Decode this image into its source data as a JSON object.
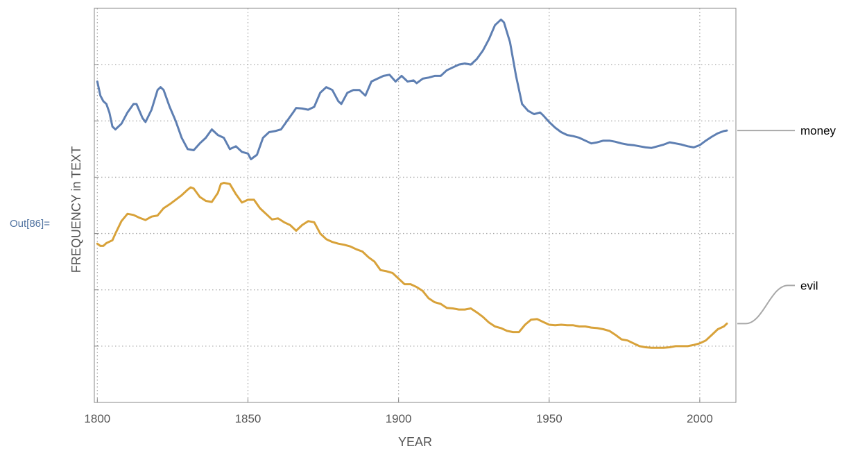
{
  "cell": {
    "out_label": "Out[86]="
  },
  "chart_data": {
    "type": "line",
    "title": "",
    "xlabel": "YEAR",
    "ylabel": "FREQUENCY in TEXT",
    "xlim": [
      1799,
      2012
    ],
    "ylim": [
      0,
      7
    ],
    "x_ticks": [
      1800,
      1850,
      1900,
      1950,
      2000
    ],
    "y_gridlines": [
      1,
      2,
      3,
      4,
      5,
      6
    ],
    "grid": true,
    "legend": "callout labels at right edge",
    "series": [
      {
        "name": "money",
        "color": "#5e7fb2",
        "points": [
          [
            1800,
            5.7
          ],
          [
            1801,
            5.45
          ],
          [
            1802,
            5.35
          ],
          [
            1803,
            5.3
          ],
          [
            1804,
            5.15
          ],
          [
            1805,
            4.9
          ],
          [
            1806,
            4.85
          ],
          [
            1808,
            4.95
          ],
          [
            1810,
            5.15
          ],
          [
            1812,
            5.3
          ],
          [
            1813,
            5.3
          ],
          [
            1815,
            5.05
          ],
          [
            1816,
            4.98
          ],
          [
            1818,
            5.2
          ],
          [
            1820,
            5.55
          ],
          [
            1821,
            5.6
          ],
          [
            1822,
            5.55
          ],
          [
            1824,
            5.25
          ],
          [
            1826,
            5.0
          ],
          [
            1828,
            4.7
          ],
          [
            1830,
            4.5
          ],
          [
            1832,
            4.48
          ],
          [
            1834,
            4.6
          ],
          [
            1836,
            4.7
          ],
          [
            1838,
            4.85
          ],
          [
            1840,
            4.75
          ],
          [
            1842,
            4.7
          ],
          [
            1844,
            4.5
          ],
          [
            1846,
            4.55
          ],
          [
            1848,
            4.45
          ],
          [
            1850,
            4.42
          ],
          [
            1851,
            4.32
          ],
          [
            1853,
            4.4
          ],
          [
            1855,
            4.7
          ],
          [
            1857,
            4.8
          ],
          [
            1859,
            4.82
          ],
          [
            1861,
            4.85
          ],
          [
            1863,
            5.0
          ],
          [
            1865,
            5.15
          ],
          [
            1866,
            5.23
          ],
          [
            1868,
            5.22
          ],
          [
            1870,
            5.2
          ],
          [
            1872,
            5.25
          ],
          [
            1874,
            5.5
          ],
          [
            1876,
            5.6
          ],
          [
            1878,
            5.55
          ],
          [
            1880,
            5.35
          ],
          [
            1881,
            5.3
          ],
          [
            1883,
            5.5
          ],
          [
            1885,
            5.55
          ],
          [
            1887,
            5.55
          ],
          [
            1889,
            5.45
          ],
          [
            1891,
            5.7
          ],
          [
            1893,
            5.75
          ],
          [
            1895,
            5.8
          ],
          [
            1897,
            5.82
          ],
          [
            1899,
            5.7
          ],
          [
            1901,
            5.8
          ],
          [
            1903,
            5.7
          ],
          [
            1905,
            5.72
          ],
          [
            1906,
            5.67
          ],
          [
            1908,
            5.75
          ],
          [
            1910,
            5.77
          ],
          [
            1912,
            5.8
          ],
          [
            1914,
            5.8
          ],
          [
            1916,
            5.9
          ],
          [
            1918,
            5.95
          ],
          [
            1920,
            6.0
          ],
          [
            1922,
            6.02
          ],
          [
            1924,
            6.0
          ],
          [
            1926,
            6.1
          ],
          [
            1928,
            6.25
          ],
          [
            1930,
            6.45
          ],
          [
            1932,
            6.7
          ],
          [
            1934,
            6.8
          ],
          [
            1935,
            6.75
          ],
          [
            1937,
            6.4
          ],
          [
            1939,
            5.8
          ],
          [
            1941,
            5.3
          ],
          [
            1943,
            5.18
          ],
          [
            1945,
            5.12
          ],
          [
            1947,
            5.15
          ],
          [
            1948,
            5.1
          ],
          [
            1950,
            4.98
          ],
          [
            1952,
            4.88
          ],
          [
            1954,
            4.8
          ],
          [
            1956,
            4.75
          ],
          [
            1958,
            4.73
          ],
          [
            1960,
            4.7
          ],
          [
            1962,
            4.65
          ],
          [
            1964,
            4.6
          ],
          [
            1966,
            4.62
          ],
          [
            1968,
            4.65
          ],
          [
            1970,
            4.65
          ],
          [
            1972,
            4.63
          ],
          [
            1974,
            4.6
          ],
          [
            1976,
            4.58
          ],
          [
            1978,
            4.57
          ],
          [
            1980,
            4.55
          ],
          [
            1982,
            4.53
          ],
          [
            1984,
            4.52
          ],
          [
            1986,
            4.55
          ],
          [
            1988,
            4.58
          ],
          [
            1990,
            4.62
          ],
          [
            1992,
            4.6
          ],
          [
            1994,
            4.58
          ],
          [
            1996,
            4.55
          ],
          [
            1998,
            4.53
          ],
          [
            2000,
            4.57
          ],
          [
            2002,
            4.65
          ],
          [
            2004,
            4.72
          ],
          [
            2006,
            4.78
          ],
          [
            2008,
            4.82
          ],
          [
            2009,
            4.83
          ]
        ]
      },
      {
        "name": "evil",
        "color": "#d8a23a",
        "points": [
          [
            1800,
            2.82
          ],
          [
            1801,
            2.78
          ],
          [
            1802,
            2.78
          ],
          [
            1803,
            2.83
          ],
          [
            1805,
            2.88
          ],
          [
            1806,
            3.0
          ],
          [
            1808,
            3.22
          ],
          [
            1810,
            3.35
          ],
          [
            1812,
            3.33
          ],
          [
            1814,
            3.28
          ],
          [
            1816,
            3.24
          ],
          [
            1818,
            3.3
          ],
          [
            1820,
            3.32
          ],
          [
            1822,
            3.45
          ],
          [
            1824,
            3.52
          ],
          [
            1826,
            3.6
          ],
          [
            1828,
            3.68
          ],
          [
            1830,
            3.78
          ],
          [
            1831,
            3.82
          ],
          [
            1832,
            3.8
          ],
          [
            1834,
            3.65
          ],
          [
            1836,
            3.58
          ],
          [
            1838,
            3.56
          ],
          [
            1840,
            3.72
          ],
          [
            1841,
            3.88
          ],
          [
            1842,
            3.9
          ],
          [
            1844,
            3.88
          ],
          [
            1846,
            3.7
          ],
          [
            1848,
            3.55
          ],
          [
            1850,
            3.6
          ],
          [
            1852,
            3.6
          ],
          [
            1854,
            3.45
          ],
          [
            1856,
            3.35
          ],
          [
            1858,
            3.25
          ],
          [
            1860,
            3.27
          ],
          [
            1862,
            3.2
          ],
          [
            1864,
            3.15
          ],
          [
            1866,
            3.05
          ],
          [
            1868,
            3.15
          ],
          [
            1870,
            3.22
          ],
          [
            1872,
            3.2
          ],
          [
            1874,
            3.0
          ],
          [
            1876,
            2.9
          ],
          [
            1878,
            2.85
          ],
          [
            1880,
            2.82
          ],
          [
            1882,
            2.8
          ],
          [
            1884,
            2.77
          ],
          [
            1886,
            2.72
          ],
          [
            1888,
            2.68
          ],
          [
            1890,
            2.58
          ],
          [
            1892,
            2.5
          ],
          [
            1894,
            2.35
          ],
          [
            1896,
            2.33
          ],
          [
            1898,
            2.3
          ],
          [
            1900,
            2.2
          ],
          [
            1902,
            2.1
          ],
          [
            1904,
            2.1
          ],
          [
            1906,
            2.05
          ],
          [
            1908,
            1.98
          ],
          [
            1910,
            1.85
          ],
          [
            1912,
            1.78
          ],
          [
            1914,
            1.75
          ],
          [
            1916,
            1.68
          ],
          [
            1918,
            1.67
          ],
          [
            1920,
            1.65
          ],
          [
            1922,
            1.65
          ],
          [
            1924,
            1.67
          ],
          [
            1926,
            1.6
          ],
          [
            1928,
            1.52
          ],
          [
            1930,
            1.42
          ],
          [
            1932,
            1.35
          ],
          [
            1934,
            1.32
          ],
          [
            1936,
            1.27
          ],
          [
            1938,
            1.25
          ],
          [
            1940,
            1.25
          ],
          [
            1942,
            1.38
          ],
          [
            1944,
            1.47
          ],
          [
            1946,
            1.48
          ],
          [
            1948,
            1.43
          ],
          [
            1950,
            1.38
          ],
          [
            1952,
            1.37
          ],
          [
            1954,
            1.38
          ],
          [
            1956,
            1.37
          ],
          [
            1958,
            1.37
          ],
          [
            1960,
            1.35
          ],
          [
            1962,
            1.35
          ],
          [
            1964,
            1.33
          ],
          [
            1966,
            1.32
          ],
          [
            1968,
            1.3
          ],
          [
            1970,
            1.27
          ],
          [
            1972,
            1.2
          ],
          [
            1974,
            1.12
          ],
          [
            1976,
            1.1
          ],
          [
            1978,
            1.05
          ],
          [
            1980,
            1.0
          ],
          [
            1982,
            0.98
          ],
          [
            1984,
            0.97
          ],
          [
            1986,
            0.97
          ],
          [
            1988,
            0.97
          ],
          [
            1990,
            0.98
          ],
          [
            1992,
            1.0
          ],
          [
            1994,
            1.0
          ],
          [
            1996,
            1.0
          ],
          [
            1998,
            1.02
          ],
          [
            2000,
            1.05
          ],
          [
            2002,
            1.1
          ],
          [
            2004,
            1.2
          ],
          [
            2006,
            1.3
          ],
          [
            2008,
            1.35
          ],
          [
            2009,
            1.4
          ]
        ]
      }
    ],
    "tick_color": "#555555",
    "grid_color": "#aaaaaa",
    "callout_color": "#a8a8a8"
  }
}
